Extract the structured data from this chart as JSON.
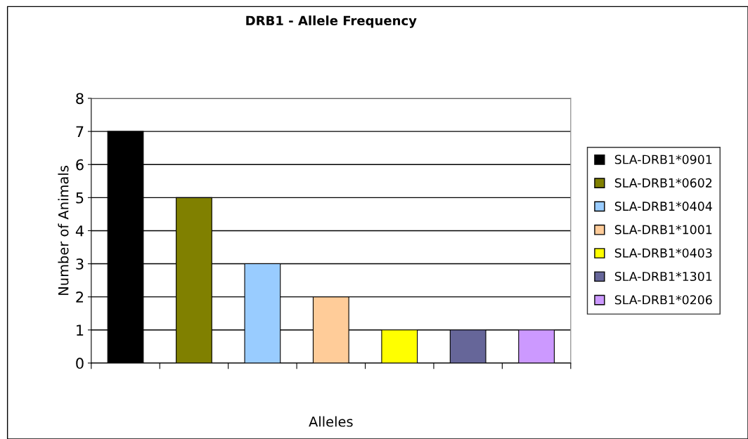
{
  "chart_data": {
    "type": "bar",
    "title": "DRB1 - Allele Frequency",
    "xlabel": "Alleles",
    "ylabel": "Number of Animals",
    "categories": [
      null,
      null,
      null,
      null,
      null,
      null,
      null
    ],
    "series": [
      {
        "name": "SLA-DRB1*0901",
        "color": "#000000",
        "values": [
          7,
          null,
          null,
          null,
          null,
          null,
          null
        ]
      },
      {
        "name": "SLA-DRB1*0602",
        "color": "#808000",
        "values": [
          null,
          5,
          null,
          null,
          null,
          null,
          null
        ]
      },
      {
        "name": "SLA-DRB1*0404",
        "color": "#99ccff",
        "values": [
          null,
          null,
          3,
          null,
          null,
          null,
          null
        ]
      },
      {
        "name": "SLA-DRB1*1001",
        "color": "#ffcc99",
        "values": [
          null,
          null,
          null,
          2,
          null,
          null,
          null
        ]
      },
      {
        "name": "SLA-DRB1*0403",
        "color": "#ffff00",
        "values": [
          null,
          null,
          null,
          null,
          1,
          null,
          null
        ]
      },
      {
        "name": "SLA-DRB1*1301",
        "color": "#666699",
        "values": [
          null,
          null,
          null,
          null,
          null,
          1,
          null
        ]
      },
      {
        "name": "SLA-DRB1*0206",
        "color": "#cc99ff",
        "values": [
          null,
          null,
          null,
          null,
          null,
          null,
          1
        ]
      }
    ],
    "ylim": [
      0,
      8
    ],
    "yticks": [
      0,
      1,
      2,
      3,
      4,
      5,
      6,
      7,
      8
    ],
    "grid": "y",
    "legend": "right"
  }
}
